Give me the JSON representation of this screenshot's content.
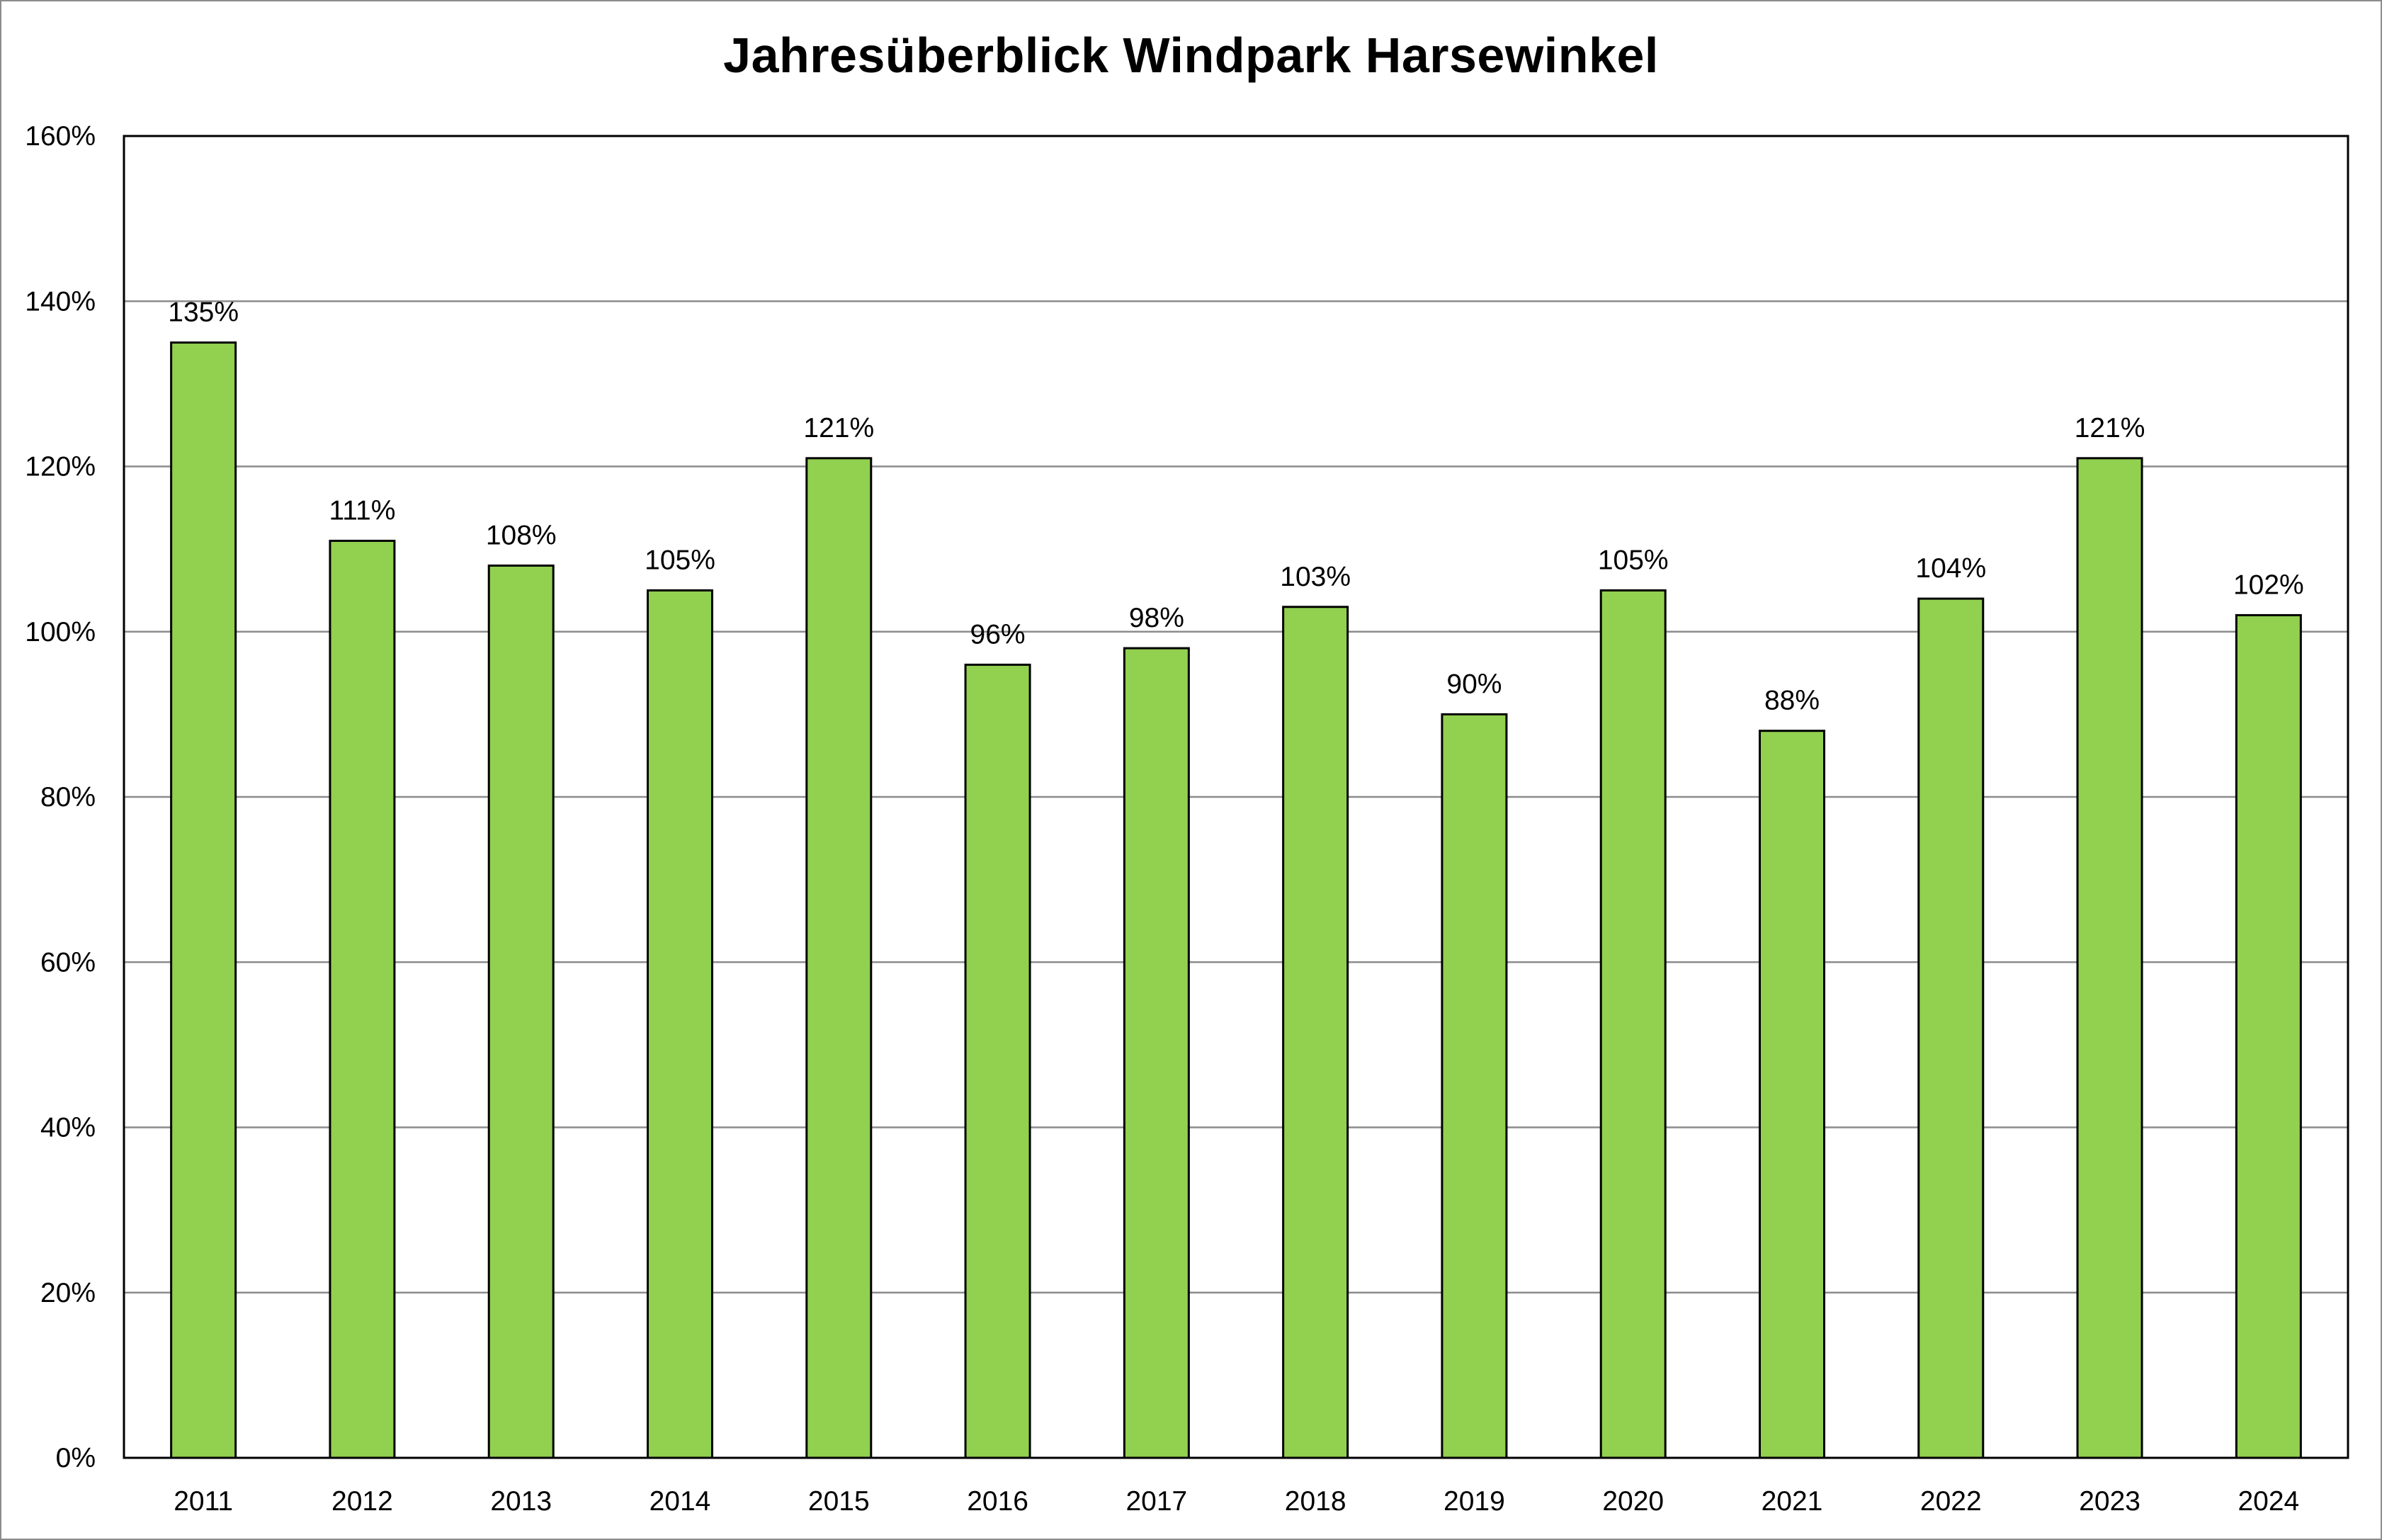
{
  "chart_data": {
    "type": "bar",
    "title": "Jahresüberblick Windpark Harsewinkel",
    "xlabel": "",
    "ylabel": "",
    "categories": [
      "2011",
      "2012",
      "2013",
      "2014",
      "2015",
      "2016",
      "2017",
      "2018",
      "2019",
      "2020",
      "2021",
      "2022",
      "2023",
      "2024"
    ],
    "values": [
      135,
      111,
      108,
      105,
      121,
      96,
      98,
      103,
      90,
      105,
      88,
      104,
      121,
      102
    ],
    "data_labels": [
      "135%",
      "111%",
      "108%",
      "105%",
      "121%",
      "96%",
      "98%",
      "103%",
      "90%",
      "105%",
      "88%",
      "104%",
      "121%",
      "102%"
    ],
    "ylim": [
      0,
      160
    ],
    "yticks": [
      0,
      20,
      40,
      60,
      80,
      100,
      120,
      140,
      160
    ],
    "ytick_labels": [
      "0%",
      "20%",
      "40%",
      "60%",
      "80%",
      "100%",
      "120%",
      "140%",
      "160%"
    ],
    "grid": true,
    "legend": "none",
    "colors": {
      "bar_fill": "#92d050",
      "bar_stroke": "#000000",
      "gridline": "#8c8c8c",
      "plot_border": "#000000"
    }
  }
}
